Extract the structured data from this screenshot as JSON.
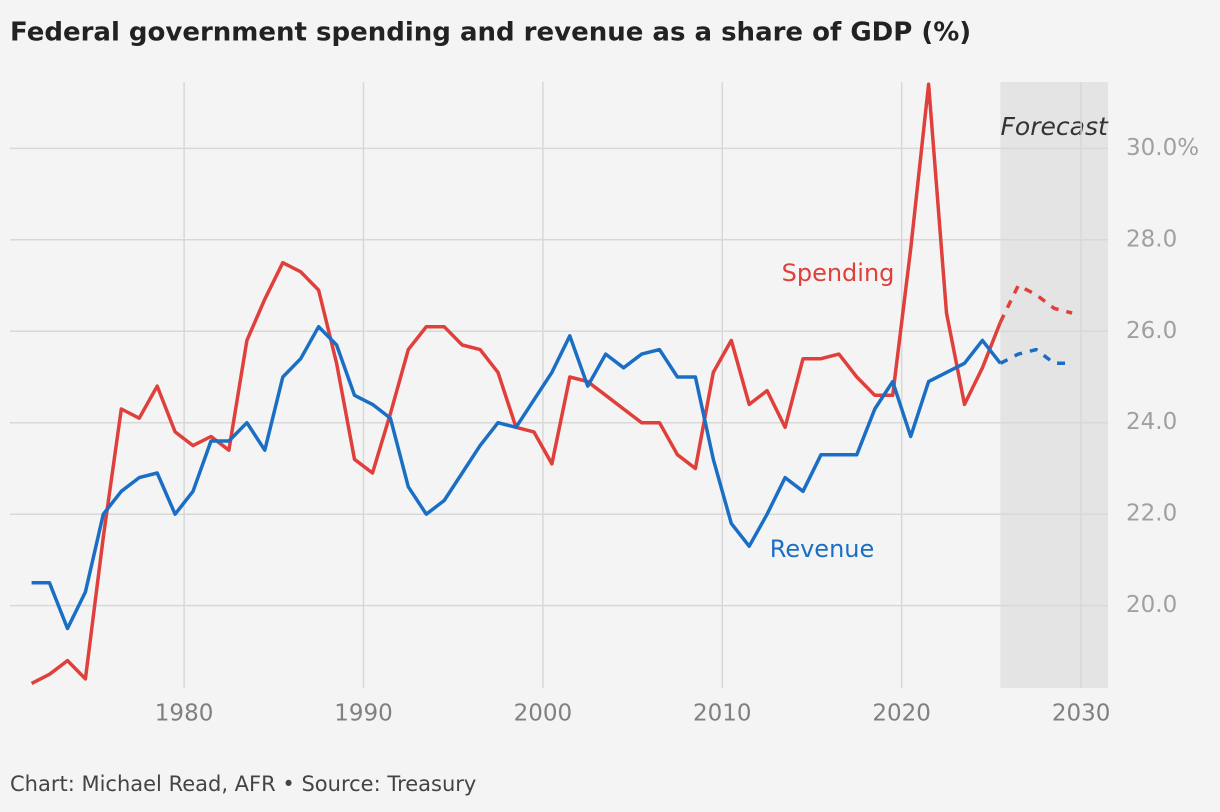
{
  "chart_data": {
    "type": "line",
    "title": "Federal government spending and revenue as a share of GDP (%)",
    "source": "Chart: Michael Read, AFR • Source: Treasury",
    "forecast": {
      "label": "Forecast",
      "x": [
        2025.5,
        2031.5
      ]
    },
    "x": [
      1971.5,
      1972.5,
      1973.5,
      1974.5,
      1975.5,
      1976.5,
      1977.5,
      1978.5,
      1979.5,
      1980.5,
      1981.5,
      1982.5,
      1983.5,
      1984.5,
      1985.5,
      1986.5,
      1987.5,
      1988.5,
      1989.5,
      1990.5,
      1991.5,
      1992.5,
      1993.5,
      1994.5,
      1995.5,
      1996.5,
      1997.5,
      1998.5,
      1999.5,
      2000.5,
      2001.5,
      2002.5,
      2003.5,
      2004.5,
      2005.5,
      2006.5,
      2007.5,
      2008.5,
      2009.5,
      2010.5,
      2011.5,
      2012.5,
      2013.5,
      2014.5,
      2015.5,
      2016.5,
      2017.5,
      2018.5,
      2019.5,
      2020.5,
      2021.5,
      2022.5,
      2023.5,
      2024.5,
      2025.5,
      2026.5,
      2027.5,
      2028.5,
      2029.5
    ],
    "series": [
      {
        "name": "Spending",
        "color": "#e0403b",
        "values": [
          18.3,
          18.5,
          18.8,
          18.4,
          21.5,
          24.3,
          24.1,
          24.8,
          23.8,
          23.5,
          23.7,
          23.4,
          25.8,
          26.7,
          27.5,
          27.3,
          26.9,
          25.3,
          23.2,
          22.9,
          24.2,
          25.6,
          26.1,
          26.1,
          25.7,
          25.6,
          25.1,
          23.9,
          23.8,
          23.1,
          25.0,
          24.9,
          24.6,
          24.3,
          24.0,
          24.0,
          23.3,
          23.0,
          25.1,
          25.8,
          24.4,
          24.7,
          23.9,
          25.4,
          25.4,
          25.5,
          25.0,
          24.6,
          24.6,
          27.8,
          31.4,
          26.4,
          24.4,
          25.2,
          26.2,
          27.0,
          26.8,
          26.5,
          26.4
        ]
      },
      {
        "name": "Revenue",
        "color": "#1a6fc4",
        "values": [
          20.5,
          20.5,
          19.5,
          20.3,
          22.0,
          22.5,
          22.8,
          22.9,
          22.0,
          22.5,
          23.6,
          23.6,
          24.0,
          23.4,
          25.0,
          25.4,
          26.1,
          25.7,
          24.6,
          24.4,
          24.1,
          22.6,
          22.0,
          22.3,
          22.9,
          23.5,
          24.0,
          23.9,
          24.5,
          25.1,
          25.9,
          24.8,
          25.5,
          25.2,
          25.5,
          25.6,
          25.0,
          25.0,
          23.2,
          21.8,
          21.3,
          22.0,
          22.8,
          22.5,
          23.3,
          23.3,
          23.3,
          24.3,
          24.9,
          23.7,
          24.9,
          25.1,
          25.3,
          25.8,
          25.3,
          25.5,
          25.6,
          25.3,
          25.3
        ]
      }
    ],
    "xlim": [
      1971.3,
      2031.5
    ],
    "ylim": [
      18.2,
      31.45
    ],
    "xticks": [
      1980,
      1990,
      2000,
      2010,
      2020,
      2030
    ],
    "yticks": [
      {
        "value": 20,
        "label": "20.0"
      },
      {
        "value": 22,
        "label": "22.0"
      },
      {
        "value": 24,
        "label": "24.0"
      },
      {
        "value": 26,
        "label": "26.0"
      },
      {
        "value": 28,
        "label": "28.0"
      },
      {
        "value": 30,
        "label": "30.0%"
      }
    ],
    "grid": true
  }
}
